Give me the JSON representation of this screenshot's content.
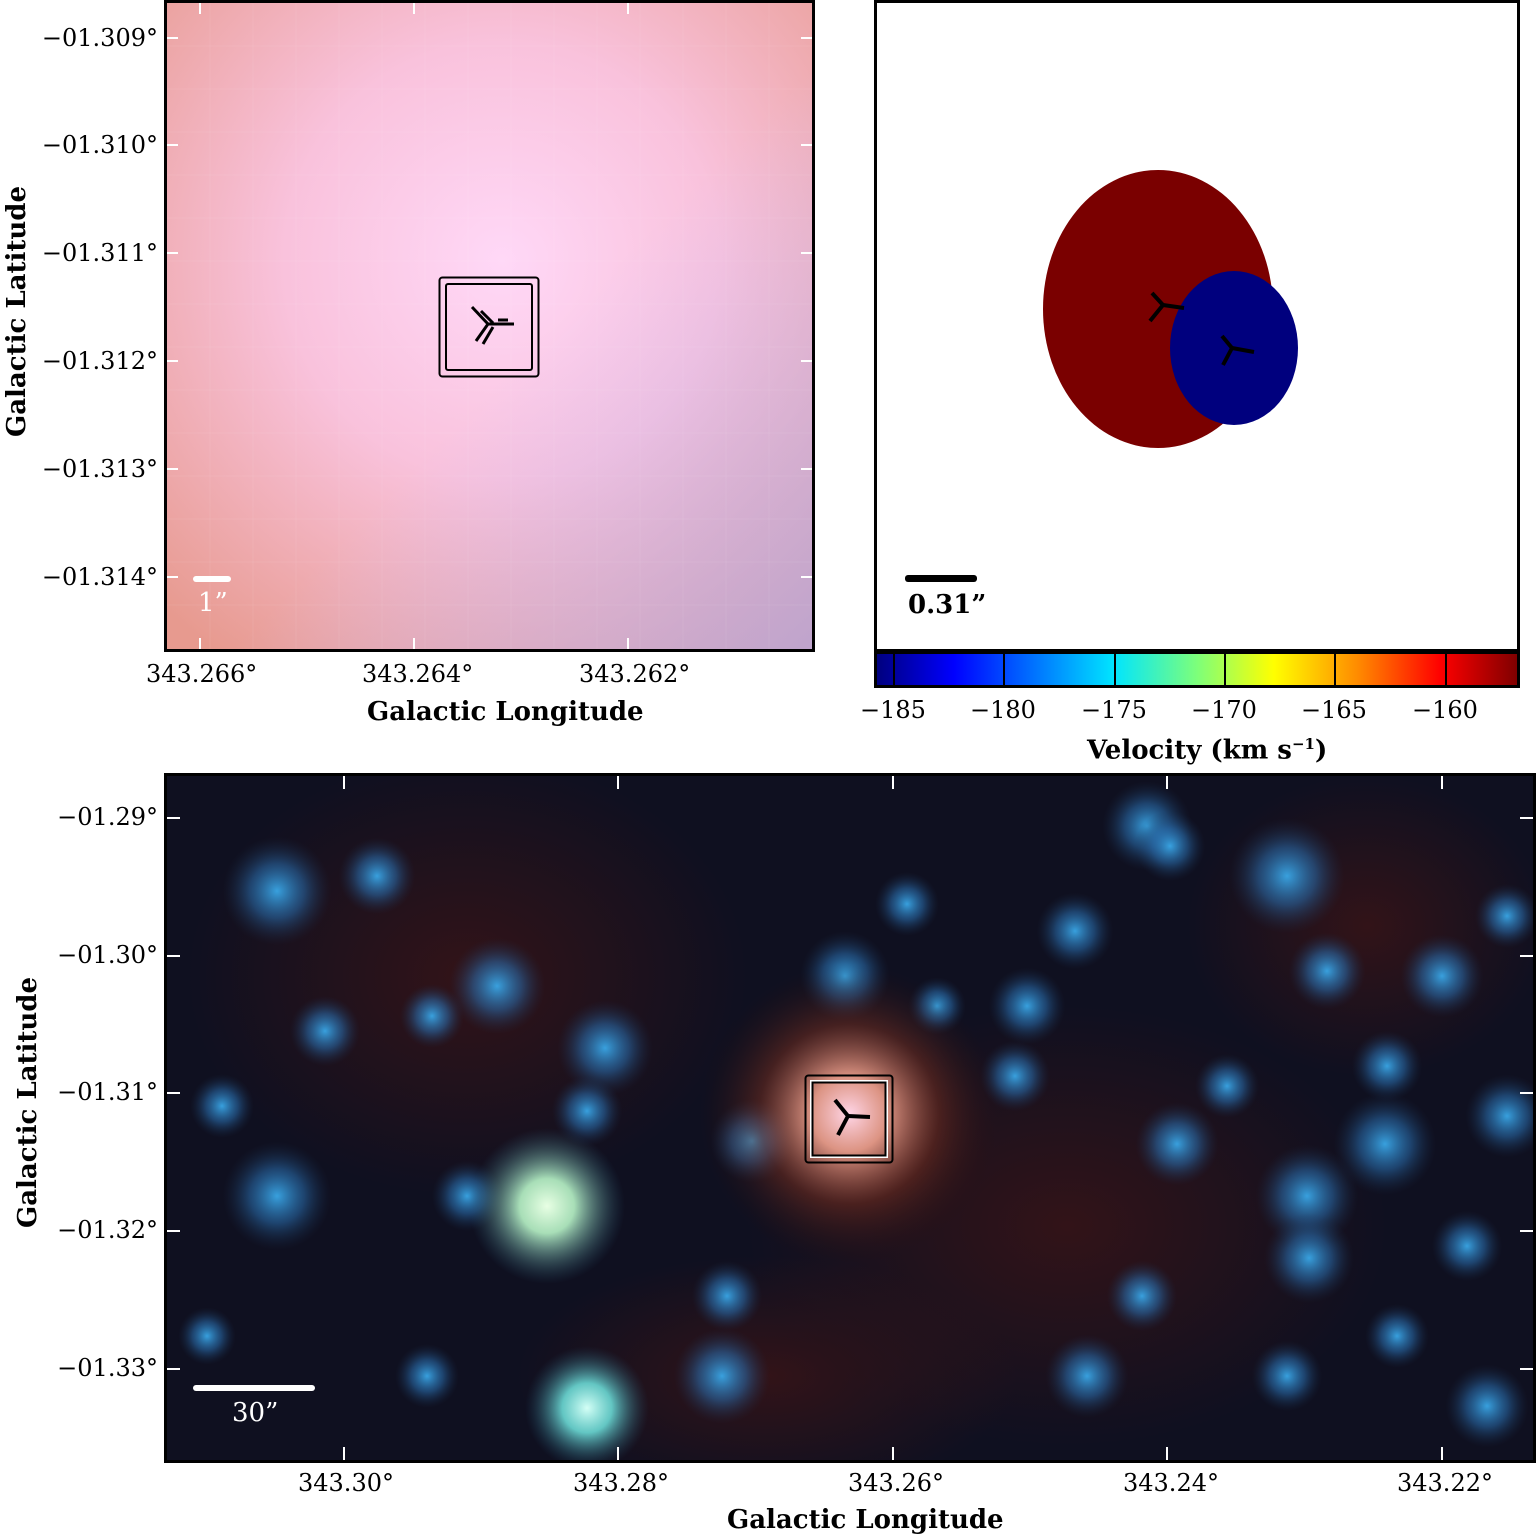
{
  "top_left": {
    "y_ticks": [
      "−01.309°",
      "−01.310°",
      "−01.311°",
      "−01.312°",
      "−01.313°",
      "−01.314°"
    ],
    "x_ticks": [
      "343.266°",
      "343.264°",
      "343.262°"
    ],
    "ylabel": "Galactic Latitude",
    "xlabel": "Galactic Longitude",
    "scale_label": "1”",
    "marker_symbol": "Y-shaped marker in boxed frame"
  },
  "top_right": {
    "scale_label": "0.31”",
    "colorbar_ticks": [
      "−185",
      "−180",
      "−175",
      "−170",
      "−165",
      "−160"
    ],
    "colorbar_label": "Velocity (km s",
    "colorbar_label_sup": "−1",
    "colorbar_label_end": ")",
    "colors": {
      "red_ellipse": "#7a0000",
      "blue_ellipse": "#00007e"
    },
    "components": [
      {
        "color": "red",
        "velocity_kms": -157
      },
      {
        "color": "blue",
        "velocity_kms": -185
      }
    ]
  },
  "bottom": {
    "y_ticks": [
      "−01.29°",
      "−01.30°",
      "−01.31°",
      "−01.32°",
      "−01.33°"
    ],
    "x_ticks": [
      "343.30°",
      "343.28°",
      "343.26°",
      "343.24°",
      "343.22°"
    ],
    "ylabel": "Galactic Latitude",
    "xlabel": "Galactic Longitude",
    "scale_label": "30”"
  }
}
